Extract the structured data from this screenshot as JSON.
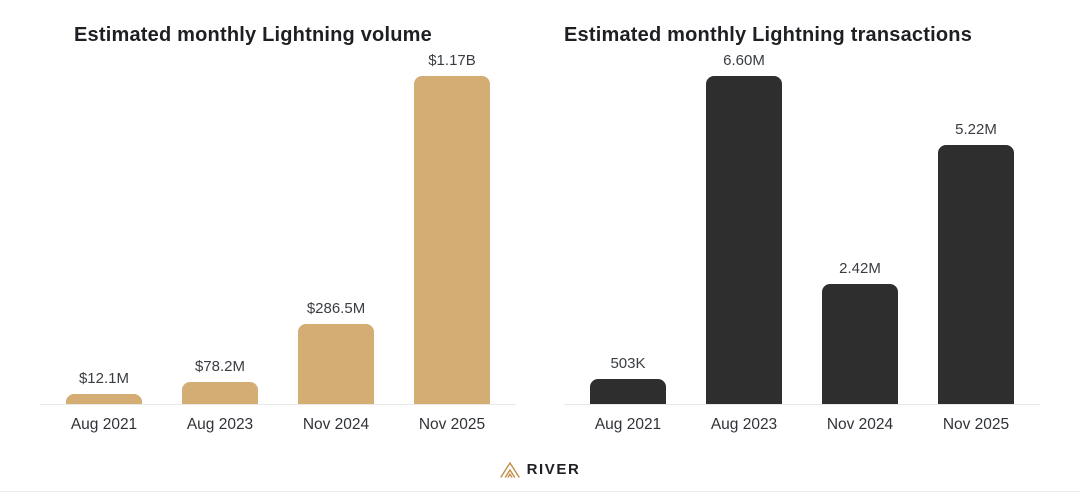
{
  "chart_data": [
    {
      "type": "bar",
      "title": "Estimated monthly Lightning volume",
      "categories": [
        "Aug 2021",
        "Aug 2023",
        "Nov 2024",
        "Nov 2025"
      ],
      "values": [
        12.1,
        78.2,
        286.5,
        1170
      ],
      "labels": [
        "$12.1M",
        "$78.2M",
        "$286.5M",
        "$1.17B"
      ],
      "unit": "USD millions",
      "xlabel": "",
      "ylabel": "",
      "ylim": [
        0,
        1170
      ],
      "bar_color": "#d3ad74",
      "grid": false,
      "legend": "none"
    },
    {
      "type": "bar",
      "title": "Estimated monthly Lightning transactions",
      "categories": [
        "Aug 2021",
        "Aug 2023",
        "Nov 2024",
        "Nov 2025"
      ],
      "values": [
        0.503,
        6.6,
        2.42,
        5.22
      ],
      "labels": [
        "503K",
        "6.60M",
        "2.42M",
        "5.22M"
      ],
      "unit": "transactions millions",
      "xlabel": "",
      "ylabel": "",
      "ylim": [
        0,
        6.6
      ],
      "bar_color": "#2e2e2e",
      "grid": false,
      "legend": "none"
    }
  ],
  "footer": {
    "brand": "RIVER"
  },
  "colors": {
    "gold": "#d3ad74",
    "dark": "#2e2e2e",
    "axis_line": "#e7e7e7",
    "logo_gold": "#c08e46",
    "text_dark": "#1d1f23"
  }
}
